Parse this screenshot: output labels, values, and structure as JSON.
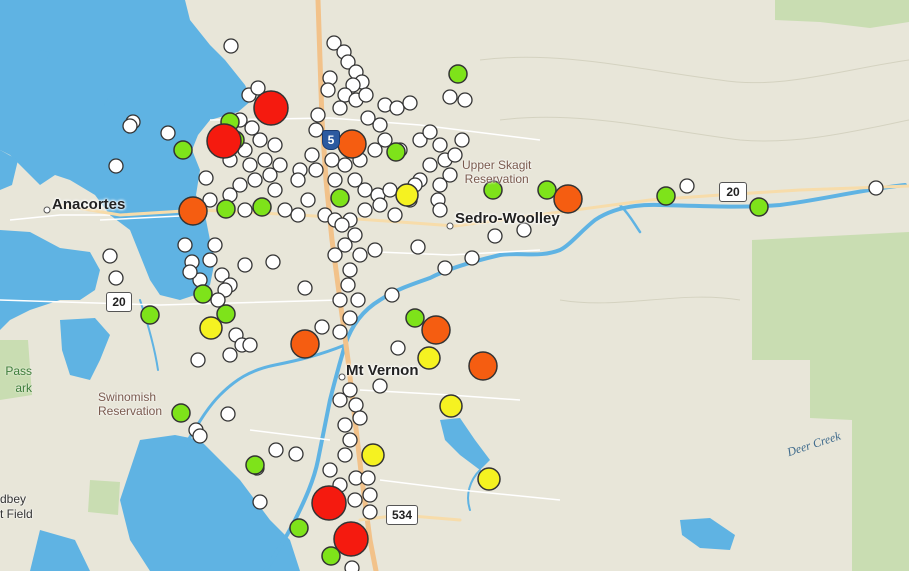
{
  "map": {
    "labels": {
      "anacortes": "Anacortes",
      "sedro_woolley": "Sedro-Woolley",
      "mt_vernon": "Mt Vernon",
      "upper_skagit": "Upper Skagit\nReservation",
      "swinomish": "Swinomish\nReservation",
      "deception_pass": "Pass\nark",
      "whidbey": "dbey\nt Field",
      "deer_creek": "Deer Creek"
    },
    "highways": {
      "i5": "5",
      "sr20_east": "20",
      "sr20_west": "20",
      "sr534": "534"
    },
    "colors": {
      "white": "#ffffff",
      "green": "#7ee31a",
      "yellow": "#f5f221",
      "orange": "#f55d11",
      "red": "#f51a0f",
      "water": "#5fb3e3",
      "land": "#e8e6d9",
      "park": "#c9ddb2"
    },
    "marker_levels": [
      "white",
      "green",
      "yellow",
      "orange",
      "red"
    ]
  }
}
